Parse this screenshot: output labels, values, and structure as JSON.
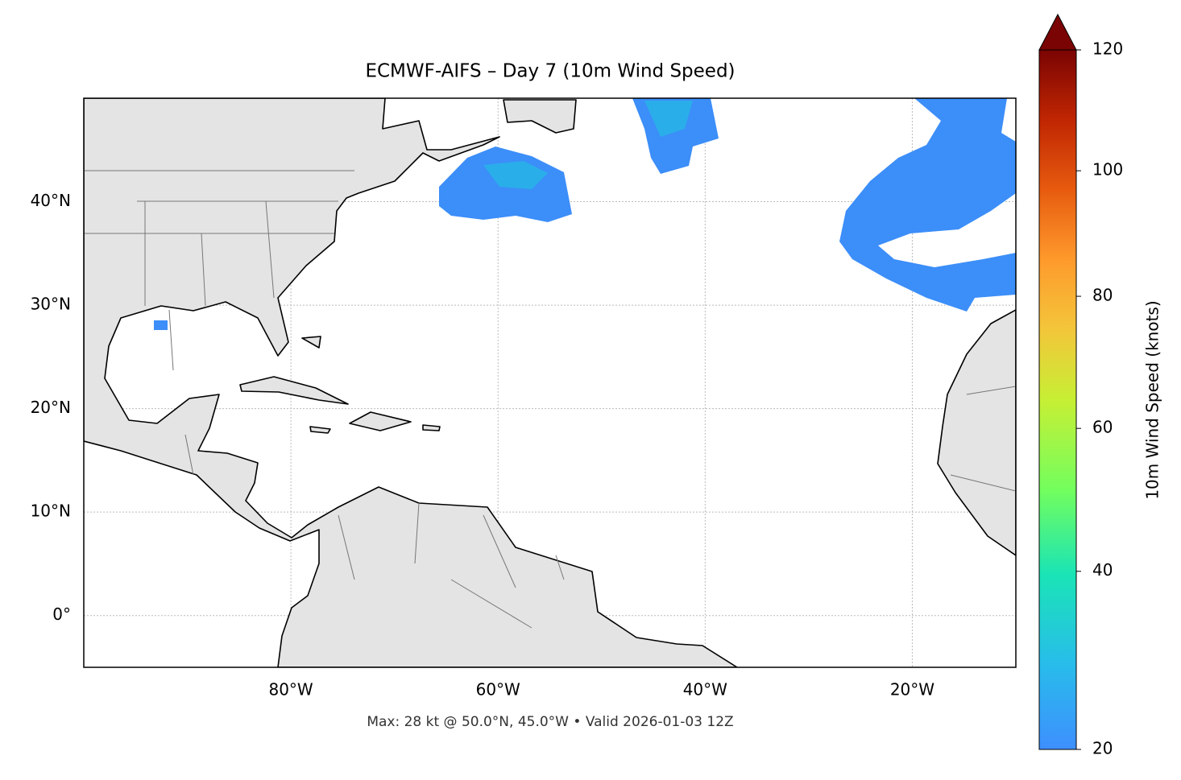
{
  "title": "ECMWF-AIFS – Day 7 (10m Wind Speed)",
  "map": {
    "xlim": [
      -100,
      -10
    ],
    "ylim": [
      -5,
      50
    ],
    "xticks": [
      {
        "value": -80,
        "label": "80°W"
      },
      {
        "value": -60,
        "label": "60°W"
      },
      {
        "value": -40,
        "label": "40°W"
      },
      {
        "value": -20,
        "label": "20°W"
      }
    ],
    "yticks": [
      {
        "value": 0,
        "label": "0°"
      },
      {
        "value": 10,
        "label": "10°N"
      },
      {
        "value": 20,
        "label": "20°N"
      },
      {
        "value": 30,
        "label": "30°N"
      },
      {
        "value": 40,
        "label": "40°N"
      }
    ],
    "grid": true
  },
  "colorbar": {
    "label": "10m Wind Speed (knots)",
    "lim": [
      20,
      120
    ],
    "ticks": [
      20,
      40,
      60,
      80,
      100,
      120
    ],
    "norm": "power",
    "gamma": 0.85,
    "colormap": "turbo",
    "extend": "max"
  },
  "footer": "Max: 28 kt @ 50.0°N, 45.0°W • Valid 2026-01-03 12Z"
}
